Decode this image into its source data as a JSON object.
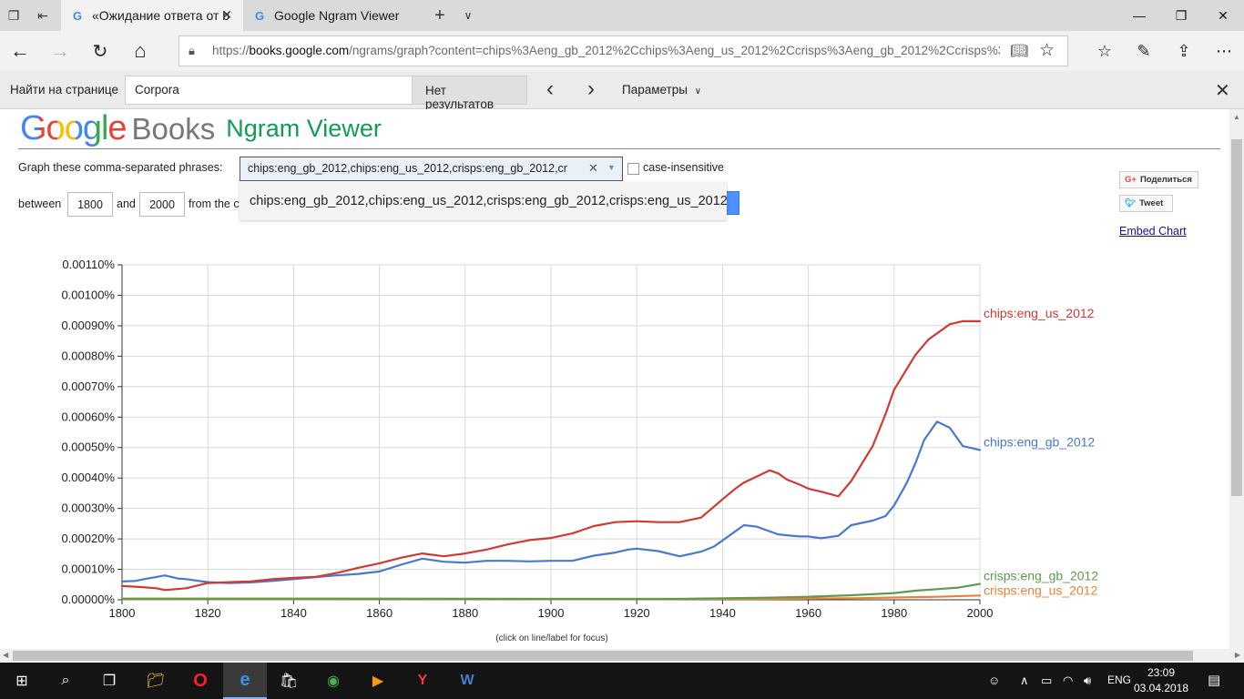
{
  "browser": {
    "tabs": [
      {
        "title": "«Ожидание ответа от b",
        "favicon": "google-g"
      },
      {
        "title": "Google Ngram Viewer",
        "favicon": "google-g"
      }
    ],
    "url_scheme": "https://",
    "url_host": "books.google.com",
    "url_path": "/ngrams/graph?content=chips%3Aeng_gb_2012%2Cchips%3Aeng_us_2012%2Ccrisps%3Aeng_gb_2012%2Ccrisps%3Aeng_us_"
  },
  "findbar": {
    "label": "Найти на странице",
    "query": "Corpora",
    "results": "Нет результатов",
    "options_label": "Параметры"
  },
  "page": {
    "logo_google": "Google",
    "logo_books": "Books",
    "logo_ngram": "Ngram Viewer",
    "phrases_label": "Graph these comma-separated phrases:",
    "phrases_value": "chips:eng_gb_2012,chips:eng_us_2012,crisps:eng_gb_2012,cr",
    "case_insensitive_label": "case-insensitive",
    "between_label": "between",
    "year_from": "1800",
    "and_label": "and",
    "year_to": "2000",
    "from_corpus_label": "from the c",
    "suggestion": "chips:eng_gb_2012,chips:eng_us_2012,crisps:eng_gb_2012,crisps:eng_us_2012",
    "share_label": "Поделиться",
    "share_prefix": "G+",
    "tweet_label": "Tweet",
    "embed_label": "Embed Chart",
    "click_note": "(click on line/label for focus)"
  },
  "chart_data": {
    "type": "line",
    "xlim": [
      1800,
      2000
    ],
    "ylim": [
      0,
      0.0011
    ],
    "x_ticks": [
      "1800",
      "1820",
      "1840",
      "1860",
      "1880",
      "1900",
      "1920",
      "1940",
      "1960",
      "1980",
      "2000"
    ],
    "y_ticks": [
      "0.00000%",
      "0.00010%",
      "0.00020%",
      "0.00030%",
      "0.00040%",
      "0.00050%",
      "0.00060%",
      "0.00070%",
      "0.00080%",
      "0.00090%",
      "0.00100%",
      "0.00110%"
    ],
    "grid": true,
    "series": [
      {
        "name": "chips:eng_us_2012",
        "color": "#d03a32",
        "x": [
          1800,
          1804,
          1808,
          1810,
          1815,
          1820,
          1825,
          1830,
          1835,
          1840,
          1845,
          1850,
          1855,
          1860,
          1865,
          1870,
          1875,
          1880,
          1885,
          1890,
          1895,
          1900,
          1905,
          1910,
          1915,
          1920,
          1925,
          1930,
          1935,
          1940,
          1943,
          1945,
          1948,
          1951,
          1953,
          1955,
          1958,
          1960,
          1963,
          1967,
          1970,
          1975,
          1978,
          1980,
          1985,
          1988,
          1990,
          1993,
          1996,
          2000
        ],
        "y": [
          4.5e-05,
          4.2e-05,
          3.8e-05,
          3.2e-05,
          3.8e-05,
          5.5e-05,
          5.8e-05,
          6e-05,
          6.8e-05,
          7.2e-05,
          7.5e-05,
          8.8e-05,
          0.000105,
          0.00012,
          0.000138,
          0.000152,
          0.000143,
          0.000152,
          0.000165,
          0.000182,
          0.000196,
          0.000203,
          0.000218,
          0.000242,
          0.000255,
          0.000258,
          0.000255,
          0.000255,
          0.00027,
          0.00033,
          0.000365,
          0.000385,
          0.000405,
          0.000425,
          0.000415,
          0.000395,
          0.000378,
          0.000365,
          0.000355,
          0.00034,
          0.00039,
          0.000505,
          0.00061,
          0.00069,
          0.000805,
          0.000855,
          0.000875,
          0.000905,
          0.000915,
          0.000915
        ]
      },
      {
        "name": "chips:eng_gb_2012",
        "color": "#4a78d0",
        "x": [
          1800,
          1803,
          1806,
          1808,
          1810,
          1813,
          1815,
          1820,
          1825,
          1830,
          1835,
          1840,
          1845,
          1850,
          1855,
          1860,
          1865,
          1870,
          1875,
          1880,
          1885,
          1890,
          1895,
          1900,
          1905,
          1910,
          1915,
          1918,
          1920,
          1925,
          1930,
          1935,
          1938,
          1940,
          1943,
          1945,
          1948,
          1950,
          1953,
          1955,
          1958,
          1960,
          1963,
          1967,
          1970,
          1975,
          1978,
          1980,
          1983,
          1985,
          1987,
          1990,
          1993,
          1996,
          2000
        ],
        "y": [
          6e-05,
          6.2e-05,
          7e-05,
          7.5e-05,
          8e-05,
          7e-05,
          6.8e-05,
          5.8e-05,
          5.5e-05,
          5.7e-05,
          6.2e-05,
          6.8e-05,
          7.4e-05,
          8e-05,
          8.5e-05,
          9.3e-05,
          0.000115,
          0.000135,
          0.000125,
          0.000122,
          0.000128,
          0.000128,
          0.000126,
          0.000128,
          0.000128,
          0.000145,
          0.000155,
          0.000165,
          0.000168,
          0.00016,
          0.000143,
          0.000158,
          0.000175,
          0.000195,
          0.000225,
          0.000245,
          0.00024,
          0.00023,
          0.000215,
          0.000212,
          0.000208,
          0.000208,
          0.000202,
          0.00021,
          0.000245,
          0.00026,
          0.000275,
          0.00031,
          0.000385,
          0.00045,
          0.000525,
          0.000585,
          0.000565,
          0.000505,
          0.000492
        ]
      },
      {
        "name": "crisps:eng_gb_2012",
        "color": "#5e9a4e",
        "x": [
          1800,
          1850,
          1900,
          1930,
          1940,
          1950,
          1960,
          1970,
          1980,
          1985,
          1990,
          1995,
          2000
        ],
        "y": [
          4e-06,
          4e-06,
          3e-06,
          3e-06,
          5e-06,
          7e-06,
          1e-05,
          1.5e-05,
          2.2e-05,
          3e-05,
          3.5e-05,
          4e-05,
          5.2e-05
        ]
      },
      {
        "name": "crisps:eng_us_2012",
        "color": "#e8823a",
        "x": [
          1800,
          1850,
          1900,
          1950,
          1970,
          1990,
          2000
        ],
        "y": [
          2e-06,
          2e-06,
          2e-06,
          3e-06,
          5e-06,
          1e-05,
          1.4e-05
        ]
      }
    ],
    "title": "",
    "xlabel": "",
    "ylabel": ""
  },
  "taskbar": {
    "time": "23:09",
    "date": "03.04.2018",
    "language": "ENG"
  }
}
